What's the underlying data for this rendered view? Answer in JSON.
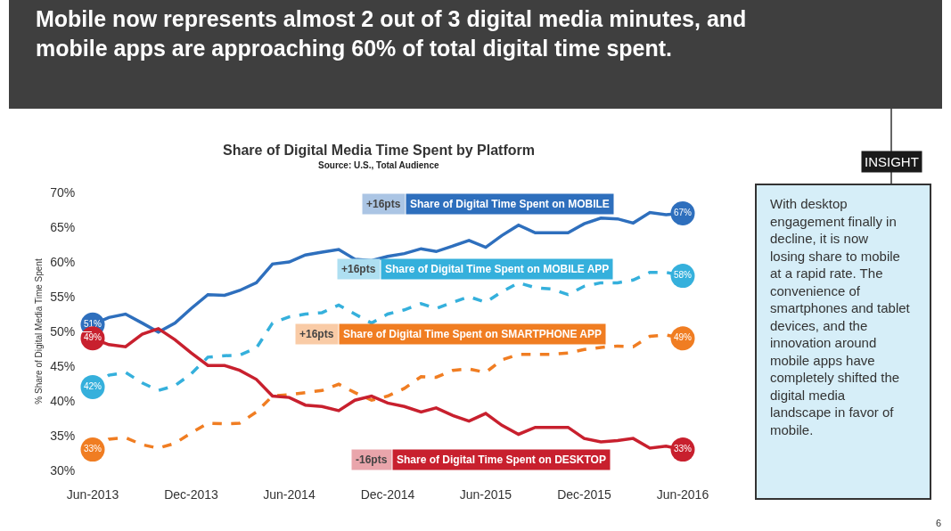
{
  "chart_data": {
    "type": "line",
    "title": "Mobile now represents almost 2 out of 3 digital media minutes, and mobile apps are approaching 60% of total digital time spent.",
    "subtitle": "Share of Digital Media Time Spent by Platform",
    "ylabel": "% Share of Digital Media Time Spent",
    "x": [
      "2013-06",
      "2013-07",
      "2013-08",
      "2013-09",
      "2013-10",
      "2013-11",
      "2013-12",
      "2014-01",
      "2014-02",
      "2014-03",
      "2014-04",
      "2014-05",
      "2014-06",
      "2014-07",
      "2014-08",
      "2014-09",
      "2014-10",
      "2014-11",
      "2014-12",
      "2015-01",
      "2015-02",
      "2015-03",
      "2015-04",
      "2015-05",
      "2015-06",
      "2015-07",
      "2015-08",
      "2015-09",
      "2015-10",
      "2015-11",
      "2015-12",
      "2016-01",
      "2016-02",
      "2016-03",
      "2016-04",
      "2016-05",
      "2016-06"
    ],
    "series": [
      {
        "name": "Share of Digital Time Spent on MOBILE",
        "color": "#2e6fbd",
        "line_style": "solid",
        "values": [
          51,
          52.0,
          52.5,
          51.2,
          49.9,
          51.2,
          53.3,
          55.3,
          55.2,
          55.9,
          57.0,
          59.7,
          60.0,
          61.0,
          61.4,
          61.8,
          60.4,
          60.2,
          60.8,
          61.2,
          61.9,
          61.5,
          62.3,
          63.1,
          62.1,
          63.8,
          65.3,
          64.2,
          64.2,
          64.2,
          65.5,
          66.3,
          66.2,
          65.6,
          67.1,
          66.8,
          67
        ],
        "value_labels": [
          "51%",
          null,
          null,
          null,
          null,
          null,
          null,
          null,
          null,
          null,
          null,
          null,
          null,
          null,
          null,
          null,
          null,
          null,
          null,
          null,
          null,
          null,
          null,
          null,
          null,
          null,
          null,
          null,
          null,
          null,
          null,
          null,
          null,
          null,
          null,
          null,
          "67%"
        ]
      },
      {
        "name": "Share of Digital Time Spent on MOBILE APP",
        "color": "#35b0dc",
        "line_style": "dashed",
        "values": [
          42,
          43.7,
          44.1,
          42.6,
          41.5,
          42.2,
          43.9,
          46.3,
          46.5,
          46.6,
          47.6,
          51.2,
          52.1,
          52.5,
          52.7,
          53.8,
          52.5,
          51.2,
          52.5,
          53.1,
          54.0,
          53.3,
          54.2,
          55.0,
          54.2,
          55.7,
          57.0,
          56.3,
          56.1,
          55.3,
          56.5,
          57.0,
          57.0,
          57.4,
          58.5,
          58.5,
          58
        ],
        "value_labels": [
          "42%",
          null,
          null,
          null,
          null,
          null,
          null,
          null,
          null,
          null,
          null,
          null,
          null,
          null,
          null,
          null,
          null,
          null,
          null,
          null,
          null,
          null,
          null,
          null,
          null,
          null,
          null,
          null,
          null,
          null,
          null,
          null,
          null,
          null,
          null,
          null,
          "58%"
        ]
      },
      {
        "name": "Share of Digital Time Spent on SMARTPHONE APP",
        "color": "#f07d22",
        "line_style": "dashed",
        "values": [
          33,
          34.5,
          34.7,
          33.7,
          33.2,
          33.9,
          35.4,
          36.8,
          36.7,
          36.8,
          38.4,
          40.7,
          40.9,
          41.2,
          41.5,
          42.4,
          41.2,
          40.1,
          40.7,
          41.8,
          43.5,
          43.4,
          44.4,
          44.6,
          44.1,
          45.9,
          46.7,
          46.7,
          46.7,
          46.9,
          47.4,
          47.7,
          47.9,
          47.8,
          49.3,
          49.5,
          49
        ],
        "value_labels": [
          "33%",
          null,
          null,
          null,
          null,
          null,
          null,
          null,
          null,
          null,
          null,
          null,
          null,
          null,
          null,
          null,
          null,
          null,
          null,
          null,
          null,
          null,
          null,
          null,
          null,
          null,
          null,
          null,
          null,
          null,
          null,
          null,
          null,
          null,
          null,
          null,
          "49%"
        ]
      },
      {
        "name": "Share of Digital Time Spent on DESKTOP",
        "color": "#c8202e",
        "line_style": "solid",
        "values": [
          49,
          48.1,
          47.8,
          49.6,
          50.4,
          48.8,
          46.9,
          45.1,
          45.1,
          44.4,
          43.1,
          40.7,
          40.5,
          39.4,
          39.2,
          38.6,
          40.1,
          40.7,
          39.7,
          39.2,
          38.4,
          39.0,
          37.9,
          37.1,
          38.2,
          36.5,
          35.2,
          36.2,
          36.2,
          36.2,
          34.6,
          34.1,
          34.3,
          34.6,
          33.2,
          33.5,
          33
        ],
        "value_labels": [
          "49%",
          null,
          null,
          null,
          null,
          null,
          null,
          null,
          null,
          null,
          null,
          null,
          null,
          null,
          null,
          null,
          null,
          null,
          null,
          null,
          null,
          null,
          null,
          null,
          null,
          null,
          null,
          null,
          null,
          null,
          null,
          null,
          null,
          null,
          null,
          null,
          "33%"
        ]
      }
    ],
    "xlim": [
      "2013-06",
      "2016-06"
    ],
    "xticks": [
      {
        "value": "2013-06",
        "label": "Jun-2013"
      },
      {
        "value": "2013-12",
        "label": "Dec-2013"
      },
      {
        "value": "2014-06",
        "label": "Jun-2014"
      },
      {
        "value": "2014-12",
        "label": "Dec-2014"
      },
      {
        "value": "2015-06",
        "label": "Jun-2015"
      },
      {
        "value": "2015-12",
        "label": "Dec-2015"
      },
      {
        "value": "2016-06",
        "label": "Jun-2016"
      }
    ],
    "ylim": [
      30,
      70
    ],
    "yticks": [
      {
        "value": 30,
        "label": "30%"
      },
      {
        "value": 35,
        "label": "35%"
      },
      {
        "value": 40,
        "label": "40%"
      },
      {
        "value": 45,
        "label": "45%"
      },
      {
        "value": 50,
        "label": "50%"
      },
      {
        "value": 55,
        "label": "55%"
      },
      {
        "value": 60,
        "label": "60%"
      },
      {
        "value": 65,
        "label": "65%"
      },
      {
        "value": 70,
        "label": "70%"
      }
    ],
    "legend": false,
    "marker": "none",
    "annotations": [
      "+16pts",
      "+16pts",
      "+16pts",
      "-16pts",
      "Source: U.S., Total Audience",
      "INSIGHT",
      "With desktop engagement finally in decline, it is now losing share to mobile at a rapid rate. The convenience of smartphones and tablet devices, and the innovation around mobile apps have completely shifted the digital media landscape in favor of mobile.",
      "6"
    ]
  }
}
